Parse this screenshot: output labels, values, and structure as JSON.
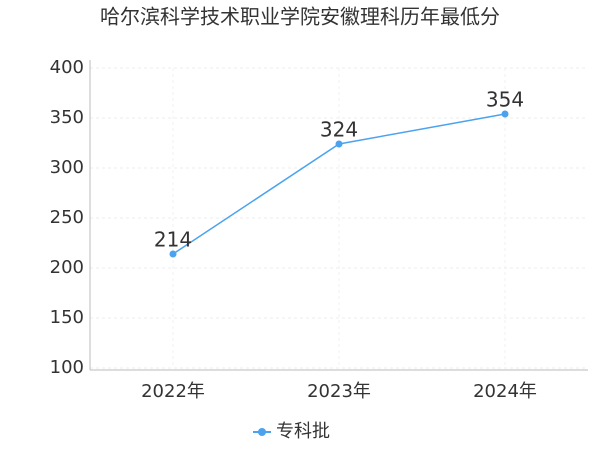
{
  "chart_data": {
    "type": "line",
    "title": "哈尔滨科学技术职业学院安徽理科历年最低分",
    "categories": [
      "2022年",
      "2023年",
      "2024年"
    ],
    "series": [
      {
        "name": "专科批",
        "color": "#4ba3ef",
        "values": [
          214,
          324,
          354
        ]
      }
    ],
    "ylim": [
      100,
      400
    ],
    "yticks": [
      100,
      150,
      200,
      250,
      300,
      350,
      400
    ],
    "grid": true,
    "legend": "bottom"
  }
}
